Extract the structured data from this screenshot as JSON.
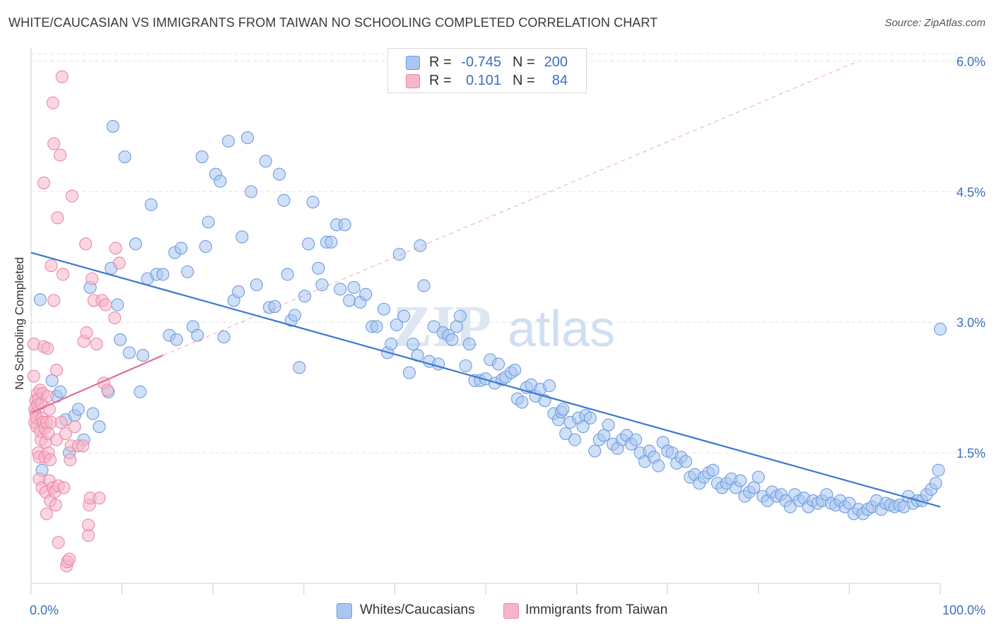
{
  "title": "WHITE/CAUCASIAN VS IMMIGRANTS FROM TAIWAN NO SCHOOLING COMPLETED CORRELATION CHART",
  "source": "Source: ZipAtlas.com",
  "watermark": {
    "zip": "ZIP",
    "atlas": "atlas"
  },
  "legend": {
    "rows": [
      {
        "r_label": "R =",
        "r_value": "-0.745",
        "n_label": "N =",
        "n_value": "200",
        "color": "#a9c6f0"
      },
      {
        "r_label": "R =",
        "r_value": "0.101",
        "n_label": "N =",
        "n_value": "84",
        "color": "#f6b5c8"
      }
    ]
  },
  "bottom_legend": [
    {
      "label": "Whites/Caucasians",
      "color": "#a9c6f0"
    },
    {
      "label": "Immigrants from Taiwan",
      "color": "#f6b5c8"
    }
  ],
  "chart_data": {
    "type": "scatter",
    "title": "WHITE/CAUCASIAN VS IMMIGRANTS FROM TAIWAN NO SCHOOLING COMPLETED CORRELATION CHART",
    "xlabel": "",
    "ylabel": "No Schooling Completed",
    "x_tick_labels": [
      "0.0%",
      "100.0%"
    ],
    "y_tick_labels": [
      "1.5%",
      "3.0%",
      "4.5%",
      "6.0%"
    ],
    "y_ticks": [
      1.5,
      3.0,
      4.5,
      6.0
    ],
    "xlim": [
      0,
      100
    ],
    "ylim": [
      0,
      6.15
    ],
    "grid": true,
    "colors": {
      "blue_fill": "#a9c6f0",
      "blue_stroke": "#6f9ce0",
      "blue_line": "#3a78d0",
      "pink_fill": "#f6b5c8",
      "pink_stroke": "#ea8aa8",
      "pink_line": "#e56b94"
    },
    "series": [
      {
        "name": "Whites/Caucasians",
        "points": [
          [
            1.0,
            3.26
          ],
          [
            1.2,
            1.3
          ],
          [
            2.3,
            2.33
          ],
          [
            2.8,
            2.15
          ],
          [
            3.2,
            2.2
          ],
          [
            3.8,
            1.88
          ],
          [
            4.2,
            1.5
          ],
          [
            4.8,
            1.93
          ],
          [
            5.2,
            2.0
          ],
          [
            5.8,
            1.65
          ],
          [
            6.5,
            3.4
          ],
          [
            6.8,
            1.95
          ],
          [
            7.5,
            1.8
          ],
          [
            8.5,
            2.2
          ],
          [
            8.8,
            3.62
          ],
          [
            9.0,
            5.25
          ],
          [
            9.5,
            3.2
          ],
          [
            9.8,
            2.8
          ],
          [
            10.3,
            4.9
          ],
          [
            10.8,
            2.65
          ],
          [
            11.5,
            3.9
          ],
          [
            12.0,
            2.2
          ],
          [
            12.3,
            2.62
          ],
          [
            12.8,
            3.5
          ],
          [
            13.2,
            4.35
          ],
          [
            13.8,
            3.55
          ],
          [
            14.5,
            3.55
          ],
          [
            15.2,
            2.85
          ],
          [
            15.8,
            3.8
          ],
          [
            16.0,
            2.8
          ],
          [
            16.5,
            3.85
          ],
          [
            17.2,
            3.58
          ],
          [
            17.8,
            2.95
          ],
          [
            18.3,
            2.85
          ],
          [
            18.8,
            4.9
          ],
          [
            19.2,
            3.87
          ],
          [
            19.5,
            4.15
          ],
          [
            20.3,
            4.7
          ],
          [
            20.8,
            4.62
          ],
          [
            21.2,
            2.83
          ],
          [
            21.7,
            5.08
          ],
          [
            22.3,
            3.25
          ],
          [
            22.8,
            3.35
          ],
          [
            23.2,
            3.98
          ],
          [
            23.8,
            5.12
          ],
          [
            24.2,
            4.5
          ],
          [
            24.8,
            3.43
          ],
          [
            25.8,
            4.85
          ],
          [
            26.2,
            3.17
          ],
          [
            26.8,
            3.18
          ],
          [
            27.3,
            4.7
          ],
          [
            27.8,
            4.4
          ],
          [
            28.2,
            3.55
          ],
          [
            28.6,
            3.02
          ],
          [
            29.0,
            3.08
          ],
          [
            29.5,
            2.48
          ],
          [
            30.1,
            3.3
          ],
          [
            30.5,
            3.9
          ],
          [
            31.0,
            4.38
          ],
          [
            31.6,
            3.62
          ],
          [
            32.0,
            3.43
          ],
          [
            32.5,
            3.92
          ],
          [
            33.0,
            3.92
          ],
          [
            33.6,
            4.12
          ],
          [
            34.0,
            3.38
          ],
          [
            34.5,
            4.12
          ],
          [
            35.0,
            3.25
          ],
          [
            35.5,
            3.4
          ],
          [
            36.2,
            3.23
          ],
          [
            36.8,
            3.32
          ],
          [
            37.5,
            2.95
          ],
          [
            38.0,
            2.95
          ],
          [
            38.8,
            3.15
          ],
          [
            39.2,
            2.65
          ],
          [
            39.6,
            2.75
          ],
          [
            40.2,
            2.97
          ],
          [
            40.5,
            3.78
          ],
          [
            41.0,
            3.07
          ],
          [
            41.6,
            2.42
          ],
          [
            42.0,
            2.75
          ],
          [
            42.5,
            2.62
          ],
          [
            42.8,
            3.88
          ],
          [
            43.2,
            3.42
          ],
          [
            43.8,
            2.55
          ],
          [
            44.3,
            2.95
          ],
          [
            44.8,
            2.52
          ],
          [
            45.3,
            2.88
          ],
          [
            45.9,
            2.85
          ],
          [
            46.3,
            2.8
          ],
          [
            46.8,
            2.95
          ],
          [
            47.2,
            3.07
          ],
          [
            47.8,
            2.5
          ],
          [
            48.2,
            2.75
          ],
          [
            48.8,
            2.33
          ],
          [
            49.4,
            2.33
          ],
          [
            50.0,
            2.35
          ],
          [
            50.5,
            2.57
          ],
          [
            51.0,
            2.3
          ],
          [
            51.4,
            2.52
          ],
          [
            51.8,
            2.34
          ],
          [
            52.2,
            2.37
          ],
          [
            52.8,
            2.42
          ],
          [
            53.2,
            2.45
          ],
          [
            53.5,
            2.12
          ],
          [
            54.0,
            2.08
          ],
          [
            54.5,
            2.25
          ],
          [
            55.0,
            2.28
          ],
          [
            55.5,
            2.15
          ],
          [
            56.0,
            2.23
          ],
          [
            56.5,
            2.1
          ],
          [
            57.0,
            2.27
          ],
          [
            57.5,
            1.95
          ],
          [
            58.0,
            1.88
          ],
          [
            58.3,
            1.97
          ],
          [
            58.8,
            1.72
          ],
          [
            59.3,
            1.85
          ],
          [
            59.8,
            1.65
          ],
          [
            60.2,
            1.9
          ],
          [
            60.7,
            1.8
          ],
          [
            61.0,
            1.93
          ],
          [
            61.5,
            1.9
          ],
          [
            62.0,
            1.52
          ],
          [
            62.5,
            1.65
          ],
          [
            63.0,
            1.7
          ],
          [
            63.5,
            1.82
          ],
          [
            64.0,
            1.6
          ],
          [
            64.5,
            1.55
          ],
          [
            65.0,
            1.65
          ],
          [
            65.5,
            1.7
          ],
          [
            66.0,
            1.6
          ],
          [
            66.5,
            1.65
          ],
          [
            67.0,
            1.5
          ],
          [
            67.5,
            1.4
          ],
          [
            68.0,
            1.52
          ],
          [
            68.5,
            1.45
          ],
          [
            69.0,
            1.35
          ],
          [
            69.5,
            1.62
          ],
          [
            70.0,
            1.52
          ],
          [
            70.5,
            1.5
          ],
          [
            71.0,
            1.38
          ],
          [
            71.5,
            1.45
          ],
          [
            72.0,
            1.4
          ],
          [
            72.5,
            1.22
          ],
          [
            73.0,
            1.25
          ],
          [
            73.5,
            1.15
          ],
          [
            74.0,
            1.22
          ],
          [
            74.5,
            1.27
          ],
          [
            75.0,
            1.3
          ],
          [
            75.5,
            1.15
          ],
          [
            76.0,
            1.1
          ],
          [
            76.5,
            1.15
          ],
          [
            77.0,
            1.2
          ],
          [
            77.5,
            1.1
          ],
          [
            78.0,
            1.18
          ],
          [
            78.5,
            1.0
          ],
          [
            79.0,
            1.05
          ],
          [
            79.5,
            1.1
          ],
          [
            80.0,
            1.22
          ],
          [
            80.5,
            1.0
          ],
          [
            81.0,
            0.95
          ],
          [
            81.5,
            1.05
          ],
          [
            82.0,
            1.0
          ],
          [
            82.5,
            1.02
          ],
          [
            83.0,
            0.95
          ],
          [
            83.5,
            0.88
          ],
          [
            84.0,
            1.02
          ],
          [
            84.5,
            0.95
          ],
          [
            85.0,
            0.98
          ],
          [
            85.5,
            0.88
          ],
          [
            86.0,
            0.95
          ],
          [
            86.5,
            0.92
          ],
          [
            87.0,
            0.95
          ],
          [
            87.5,
            1.02
          ],
          [
            88.0,
            0.92
          ],
          [
            88.5,
            0.9
          ],
          [
            89.0,
            0.95
          ],
          [
            89.5,
            0.88
          ],
          [
            90.0,
            0.92
          ],
          [
            90.5,
            0.8
          ],
          [
            91.0,
            0.85
          ],
          [
            91.5,
            0.8
          ],
          [
            92.0,
            0.85
          ],
          [
            92.5,
            0.88
          ],
          [
            93.0,
            0.95
          ],
          [
            93.5,
            0.85
          ],
          [
            94.0,
            0.92
          ],
          [
            94.5,
            0.9
          ],
          [
            95.0,
            0.88
          ],
          [
            95.5,
            0.9
          ],
          [
            96.0,
            0.88
          ],
          [
            96.5,
            1.0
          ],
          [
            97.0,
            0.92
          ],
          [
            97.5,
            0.95
          ],
          [
            98.0,
            0.95
          ],
          [
            98.5,
            1.02
          ],
          [
            99.0,
            1.08
          ],
          [
            99.5,
            1.15
          ],
          [
            99.8,
            1.3
          ],
          [
            100.0,
            2.92
          ],
          [
            58.5,
            2.0
          ]
        ]
      },
      {
        "name": "Immigrants from Taiwan",
        "points": [
          [
            0.3,
            2.75
          ],
          [
            0.3,
            2.38
          ],
          [
            0.4,
            2.0
          ],
          [
            0.4,
            1.85
          ],
          [
            0.5,
            1.95
          ],
          [
            0.5,
            2.1
          ],
          [
            0.6,
            1.8
          ],
          [
            0.6,
            1.9
          ],
          [
            0.7,
            2.05
          ],
          [
            0.7,
            2.18
          ],
          [
            0.8,
            1.5
          ],
          [
            0.8,
            2.12
          ],
          [
            0.9,
            1.45
          ],
          [
            0.9,
            1.2
          ],
          [
            1.0,
            1.75
          ],
          [
            1.0,
            2.22
          ],
          [
            1.1,
            1.65
          ],
          [
            1.1,
            2.07
          ],
          [
            1.2,
            1.9
          ],
          [
            1.2,
            1.1
          ],
          [
            1.3,
            2.18
          ],
          [
            1.3,
            1.85
          ],
          [
            1.4,
            2.72
          ],
          [
            1.4,
            4.6
          ],
          [
            1.5,
            1.78
          ],
          [
            1.5,
            1.45
          ],
          [
            1.6,
            1.05
          ],
          [
            1.6,
            1.62
          ],
          [
            1.7,
            0.8
          ],
          [
            1.7,
            1.85
          ],
          [
            1.8,
            2.7
          ],
          [
            1.8,
            2.15
          ],
          [
            1.9,
            1.72
          ],
          [
            1.9,
            1.5
          ],
          [
            2.0,
            2.0
          ],
          [
            2.0,
            1.18
          ],
          [
            2.1,
            0.95
          ],
          [
            2.1,
            1.42
          ],
          [
            2.2,
            3.65
          ],
          [
            2.2,
            1.85
          ],
          [
            2.4,
            5.52
          ],
          [
            2.4,
            1.1
          ],
          [
            2.5,
            3.25
          ],
          [
            2.5,
            5.05
          ],
          [
            2.6,
            1.05
          ],
          [
            2.7,
            0.9
          ],
          [
            2.8,
            2.45
          ],
          [
            2.8,
            1.65
          ],
          [
            2.9,
            4.2
          ],
          [
            3.0,
            0.47
          ],
          [
            3.0,
            1.12
          ],
          [
            3.2,
            4.92
          ],
          [
            3.3,
            1.85
          ],
          [
            3.4,
            5.82
          ],
          [
            3.5,
            3.55
          ],
          [
            3.6,
            1.1
          ],
          [
            3.8,
            1.72
          ],
          [
            3.9,
            0.2
          ],
          [
            4.0,
            0.25
          ],
          [
            4.2,
            0.28
          ],
          [
            4.3,
            1.42
          ],
          [
            4.4,
            1.58
          ],
          [
            4.5,
            4.45
          ],
          [
            4.8,
            1.8
          ],
          [
            5.2,
            1.58
          ],
          [
            5.7,
            1.58
          ],
          [
            5.8,
            2.78
          ],
          [
            6.0,
            3.9
          ],
          [
            6.1,
            2.88
          ],
          [
            6.3,
            0.67
          ],
          [
            6.3,
            0.55
          ],
          [
            6.4,
            0.9
          ],
          [
            6.5,
            0.98
          ],
          [
            6.7,
            3.5
          ],
          [
            6.9,
            3.25
          ],
          [
            7.2,
            2.75
          ],
          [
            7.5,
            0.98
          ],
          [
            7.8,
            3.25
          ],
          [
            8.0,
            2.3
          ],
          [
            8.2,
            3.2
          ],
          [
            8.4,
            2.22
          ],
          [
            9.2,
            3.05
          ],
          [
            9.3,
            3.85
          ],
          [
            9.7,
            3.68
          ]
        ]
      }
    ],
    "trendlines": [
      {
        "series": "Whites/Caucasians",
        "x": [
          0,
          100
        ],
        "y": [
          3.8,
          0.88
        ],
        "style": "solid"
      },
      {
        "series": "Immigrants from Taiwan",
        "x": [
          0,
          14.5
        ],
        "y": [
          1.96,
          2.62
        ],
        "style": "solid"
      },
      {
        "series": "Immigrants from Taiwan",
        "x": [
          14.5,
          91
        ],
        "y": [
          2.62,
          6.0
        ],
        "style": "dashed"
      }
    ]
  }
}
